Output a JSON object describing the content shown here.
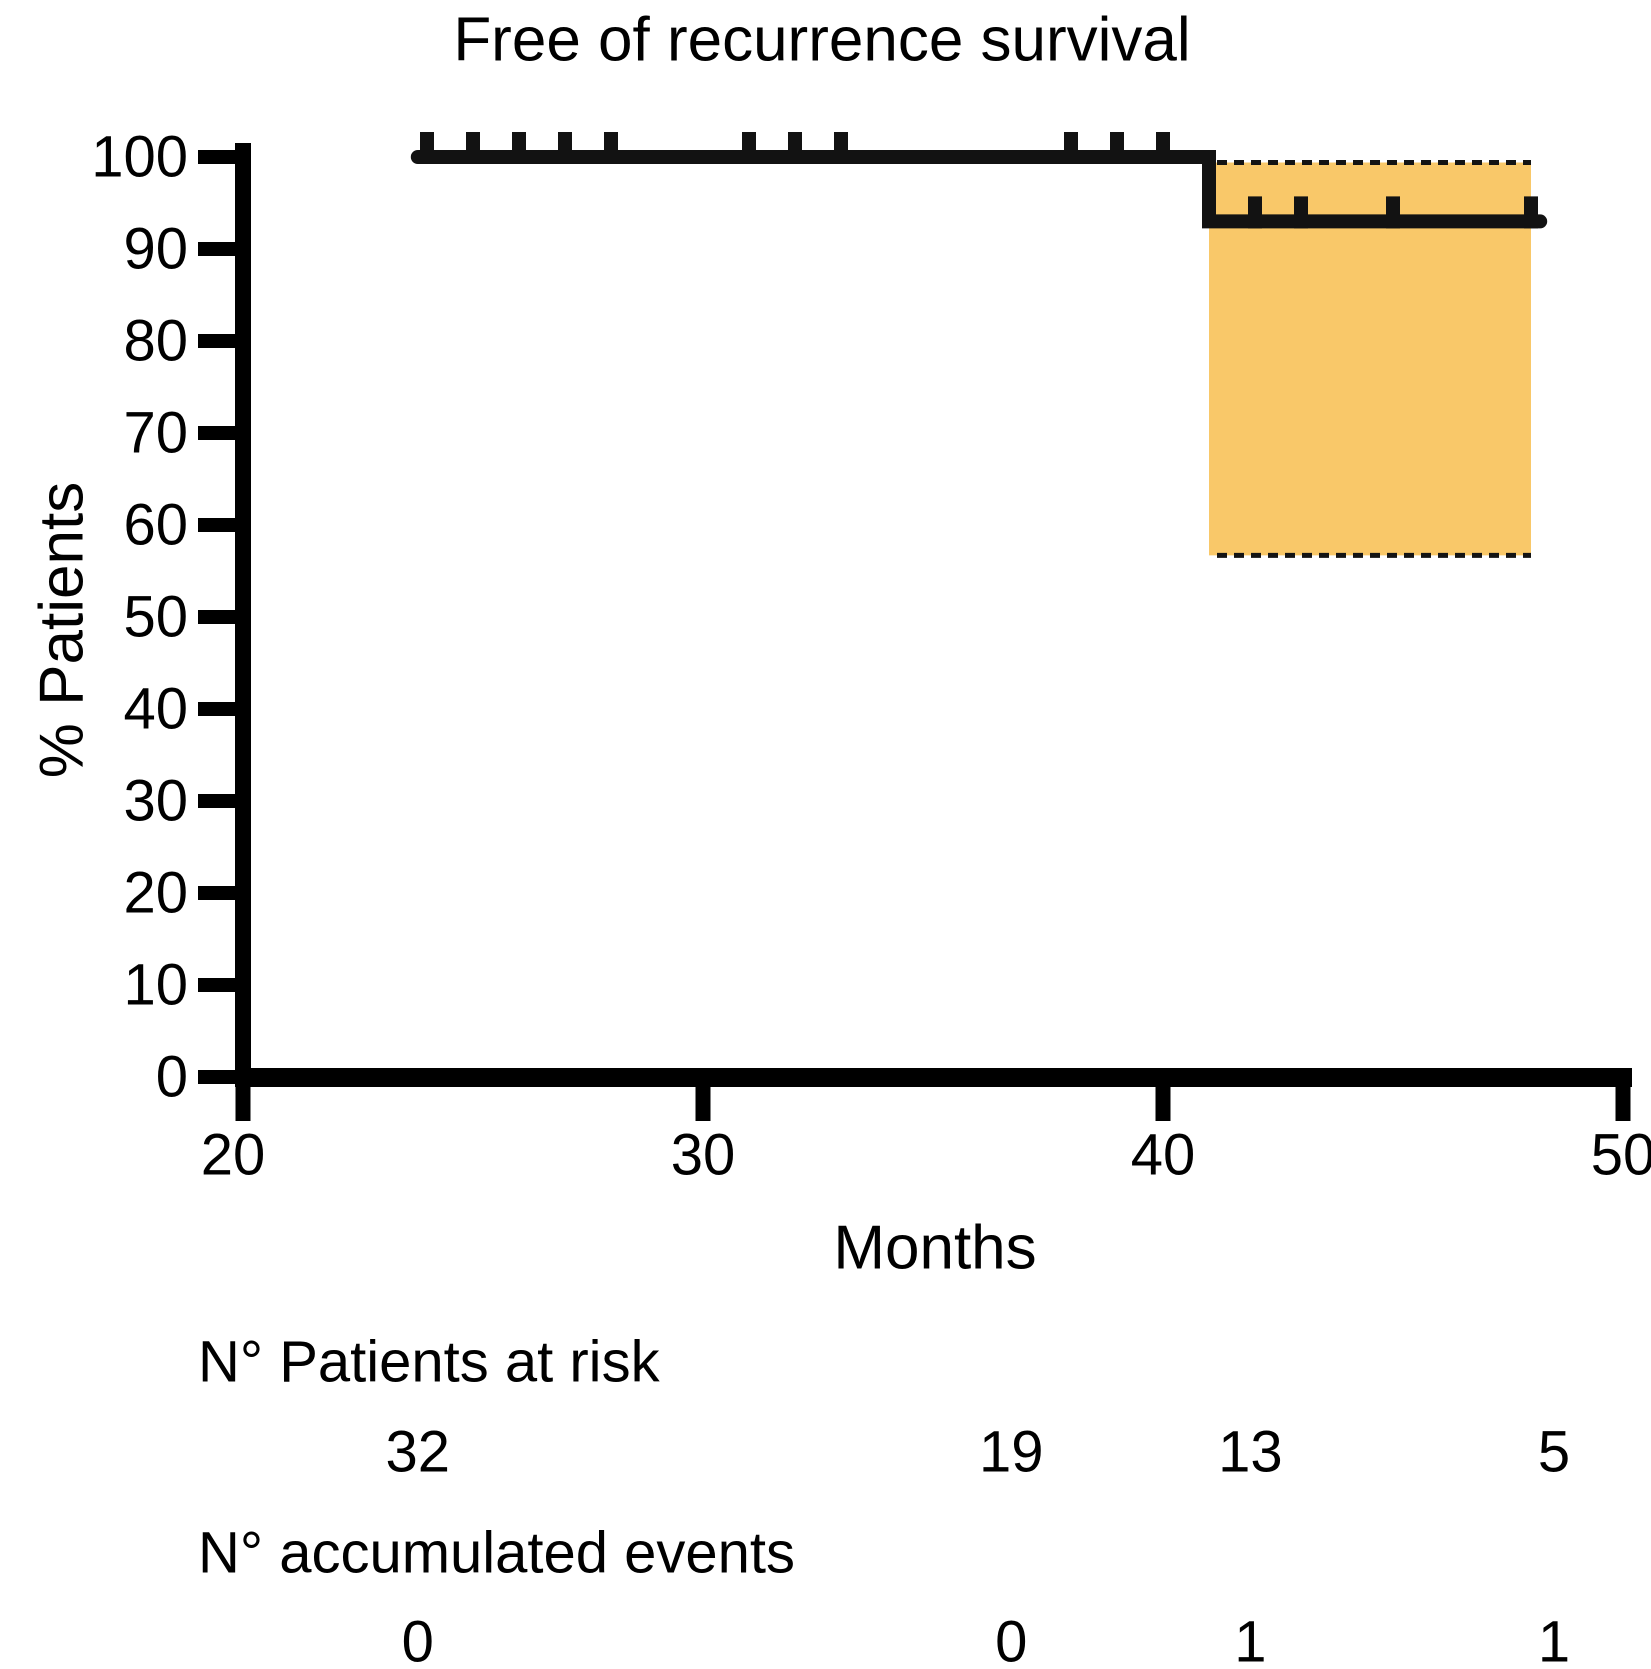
{
  "title": "Free of recurrence survival",
  "chart_data": {
    "type": "line",
    "subtype": "kaplan-meier-step",
    "title": "Free of recurrence survival",
    "xlabel": "Months",
    "ylabel": "% Patients",
    "xlim": [
      20,
      50
    ],
    "ylim": [
      0,
      100
    ],
    "x_ticks": [
      20,
      30,
      40,
      50
    ],
    "y_ticks": [
      0,
      10,
      20,
      30,
      40,
      50,
      60,
      70,
      80,
      90,
      100
    ],
    "grid": false,
    "legend": "none",
    "series": [
      {
        "name": "Free of recurrence survival",
        "step_points": [
          {
            "x": 23.8,
            "y": 100
          },
          {
            "x": 41.0,
            "y": 100
          },
          {
            "x": 41.0,
            "y": 93
          },
          {
            "x": 48.2,
            "y": 93
          }
        ],
        "censor_marks_upper_level": 100,
        "censor_marks_upper_x": [
          24,
          25,
          26,
          27,
          28,
          31,
          32,
          33,
          38,
          39,
          40
        ],
        "censor_marks_lower_level": 93,
        "censor_marks_lower_x": [
          42,
          43,
          45,
          48
        ]
      }
    ],
    "confidence_band": {
      "x_start": 41.0,
      "x_end": 48.0,
      "upper_pct": 99.4,
      "lower_pct": 56.7,
      "fill_color": "#F9C869",
      "border_style": "dashed",
      "border_color": "#141414"
    }
  },
  "risk_table": {
    "at_risk_label": "N° Patients at risk",
    "events_label": "N° accumulated events",
    "columns_x_months": [
      23.8,
      36.7,
      41.9,
      48.5
    ],
    "at_risk": [
      "32",
      "19",
      "13",
      "5"
    ],
    "events": [
      "0",
      "0",
      "1",
      "1"
    ]
  },
  "colors": {
    "curve": "#121212",
    "axis": "#000000",
    "band": "#F9C869",
    "dash": "#141414",
    "background": "#ffffff",
    "text": "#000000"
  }
}
